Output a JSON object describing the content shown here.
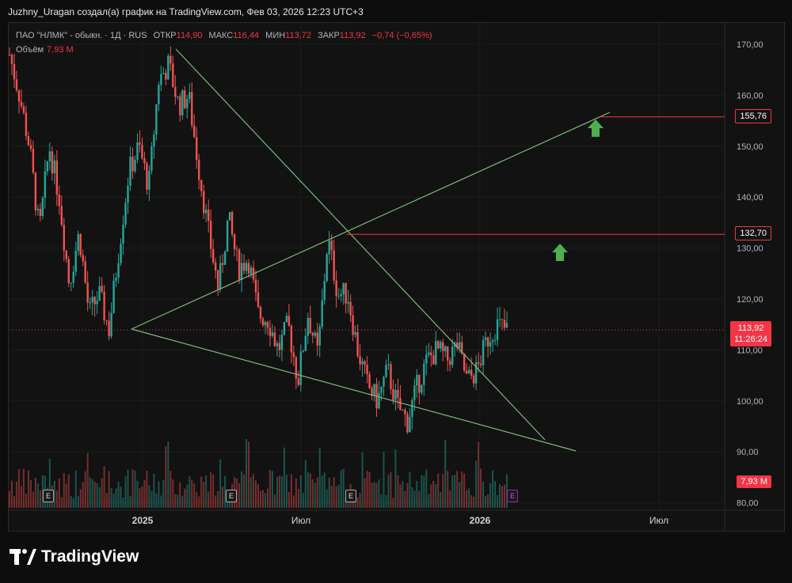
{
  "header": {
    "title": "Juzhny_Uragan создал(а) график на TradingView.com, Фев 03, 2026 12:23 UTC+3"
  },
  "legend": {
    "instrument": "ПАО \"НЛМК\" - обыкн. · 1Д · RUS",
    "open_label": "ОТКР",
    "open_value": "114,90",
    "high_label": "МАКС",
    "high_value": "116,44",
    "low_label": "МИН",
    "low_value": "113,72",
    "close_label": "ЗАКР",
    "close_value": "113,92",
    "change": "−0,74 (−0,65%)",
    "volume_label": "Объём",
    "volume_value": "7,93 M"
  },
  "price_scale": {
    "ticks": [
      "170,00",
      "160,00",
      "150,00",
      "140,00",
      "130,00",
      "120,00",
      "110,00",
      "100,00",
      "90,00",
      "80,00"
    ]
  },
  "time_scale": {
    "ticks": [
      "2025",
      "Июл",
      "2026",
      "Июл"
    ]
  },
  "tags": {
    "target_1": "155,76",
    "target_2": "132,70",
    "last_price": "113,92",
    "countdown": "11:26:24",
    "volume": "7,93 M"
  },
  "earnings_marker": "E",
  "logo": {
    "text": "TradingView"
  },
  "colors": {
    "up": "#26a69a",
    "down": "#ef5350",
    "trendline": "#7cb87a",
    "resistance": "#f23645",
    "arrow": "#4caf50",
    "background": "#121212"
  },
  "chart_data": {
    "type": "candlestick",
    "title": "ПАО \"НЛМК\" - обыкн. · 1Д · RUS",
    "ylim": [
      78,
      175
    ],
    "close_path": [
      {
        "x": 0.0,
        "y": 168
      },
      {
        "x": 0.02,
        "y": 160
      },
      {
        "x": 0.04,
        "y": 150
      },
      {
        "x": 0.06,
        "y": 133
      },
      {
        "x": 0.08,
        "y": 150
      },
      {
        "x": 0.1,
        "y": 140
      },
      {
        "x": 0.12,
        "y": 123
      },
      {
        "x": 0.14,
        "y": 133
      },
      {
        "x": 0.16,
        "y": 117
      },
      {
        "x": 0.18,
        "y": 121
      },
      {
        "x": 0.2,
        "y": 114
      },
      {
        "x": 0.22,
        "y": 130
      },
      {
        "x": 0.24,
        "y": 145
      },
      {
        "x": 0.26,
        "y": 150
      },
      {
        "x": 0.28,
        "y": 142
      },
      {
        "x": 0.3,
        "y": 163
      },
      {
        "x": 0.32,
        "y": 166
      },
      {
        "x": 0.34,
        "y": 158
      },
      {
        "x": 0.36,
        "y": 160
      },
      {
        "x": 0.38,
        "y": 146
      },
      {
        "x": 0.4,
        "y": 133
      },
      {
        "x": 0.42,
        "y": 122
      },
      {
        "x": 0.44,
        "y": 136
      },
      {
        "x": 0.46,
        "y": 126
      },
      {
        "x": 0.48,
        "y": 128
      },
      {
        "x": 0.5,
        "y": 117
      },
      {
        "x": 0.52,
        "y": 116
      },
      {
        "x": 0.54,
        "y": 110
      },
      {
        "x": 0.56,
        "y": 115
      },
      {
        "x": 0.58,
        "y": 104
      },
      {
        "x": 0.6,
        "y": 117
      },
      {
        "x": 0.62,
        "y": 109
      },
      {
        "x": 0.64,
        "y": 132
      },
      {
        "x": 0.66,
        "y": 121
      },
      {
        "x": 0.68,
        "y": 121
      },
      {
        "x": 0.7,
        "y": 110
      },
      {
        "x": 0.72,
        "y": 103
      },
      {
        "x": 0.74,
        "y": 100
      },
      {
        "x": 0.76,
        "y": 106
      },
      {
        "x": 0.78,
        "y": 99
      },
      {
        "x": 0.8,
        "y": 96
      },
      {
        "x": 0.82,
        "y": 103
      },
      {
        "x": 0.84,
        "y": 108
      },
      {
        "x": 0.86,
        "y": 110
      },
      {
        "x": 0.88,
        "y": 108
      },
      {
        "x": 0.9,
        "y": 111
      },
      {
        "x": 0.92,
        "y": 104
      },
      {
        "x": 0.94,
        "y": 106
      },
      {
        "x": 0.96,
        "y": 112
      },
      {
        "x": 0.98,
        "y": 115
      },
      {
        "x": 1.0,
        "y": 113.92
      }
    ],
    "date_range": [
      "2024-09",
      "2026-02-03"
    ],
    "trendlines": [
      {
        "name": "upper-falling",
        "from": [
          "2025-02",
          169
        ],
        "to": [
          "2026-04",
          92
        ]
      },
      {
        "name": "lower-falling",
        "from": [
          "2024-12",
          113.9
        ],
        "to": [
          "2026-05",
          90
        ]
      },
      {
        "name": "rising",
        "from": [
          "2024-12",
          113.9
        ],
        "to": [
          "2026-05",
          156.5
        ]
      }
    ],
    "horizontal_levels": [
      155.76,
      132.7
    ],
    "last_close": 113.92,
    "volume_last": "7,93 M"
  }
}
